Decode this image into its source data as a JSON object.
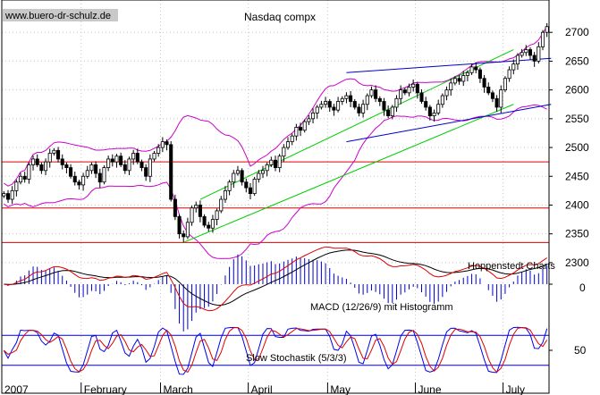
{
  "watermark": "www.buero-dr-schulz.de",
  "title": "Nasdaq compx",
  "credit": "Hoppenstedt Charts",
  "macd_label": "MACD (12/26/9) mit Histogramm",
  "stoch_label": "Slow Stochastik (5/3/3)",
  "colors": {
    "background": "#ffffff",
    "axis": "#000000",
    "grid": "#c8c8c8",
    "support": "#dd0000",
    "trend_green": "#00cc00",
    "trend_blue": "#0000cc",
    "bollinger": "#cc00cc",
    "macd_line": "#dd0000",
    "signal_line": "#000000",
    "histogram": "#0000cc",
    "stoch_k": "#0000ee",
    "stoch_d": "#dd0000"
  },
  "chart_data": [
    {
      "type": "candlestick",
      "title": "Nasdaq compx",
      "ylim": [
        2275,
        2750
      ],
      "yticks": [
        2300,
        2350,
        2400,
        2450,
        2500,
        2550,
        2600,
        2650,
        2700
      ],
      "x_labels": [
        "2007",
        "February",
        "March",
        "April",
        "May",
        "June",
        "July"
      ],
      "x_label_day_index": [
        0,
        19,
        38,
        59,
        78,
        99,
        120
      ],
      "num_days": 131,
      "grid": true,
      "close": [
        2420,
        2410,
        2425,
        2440,
        2450,
        2445,
        2470,
        2480,
        2470,
        2460,
        2475,
        2490,
        2495,
        2480,
        2470,
        2465,
        2450,
        2440,
        2435,
        2450,
        2460,
        2470,
        2455,
        2440,
        2465,
        2480,
        2475,
        2485,
        2470,
        2460,
        2480,
        2490,
        2475,
        2465,
        2450,
        2480,
        2490,
        2500,
        2510,
        2505,
        2410,
        2380,
        2350,
        2345,
        2370,
        2395,
        2400,
        2380,
        2365,
        2360,
        2375,
        2390,
        2410,
        2425,
        2440,
        2455,
        2460,
        2440,
        2430,
        2420,
        2445,
        2455,
        2460,
        2470,
        2478,
        2465,
        2485,
        2500,
        2510,
        2520,
        2535,
        2530,
        2545,
        2550,
        2560,
        2570,
        2575,
        2580,
        2570,
        2565,
        2580,
        2585,
        2590,
        2580,
        2570,
        2560,
        2575,
        2590,
        2600,
        2585,
        2580,
        2565,
        2555,
        2570,
        2585,
        2600,
        2595,
        2605,
        2610,
        2595,
        2580,
        2570,
        2555,
        2560,
        2575,
        2590,
        2600,
        2612,
        2620,
        2615,
        2625,
        2630,
        2640,
        2635,
        2620,
        2605,
        2595,
        2585,
        2570,
        2600,
        2620,
        2635,
        2645,
        2660,
        2665,
        2670,
        2660,
        2650,
        2675,
        2700,
        2710
      ],
      "support_lines": [
        2475,
        2395,
        2335
      ],
      "trend_channels": [
        {
          "color": "green",
          "points": [
            [
              47,
              2410
            ],
            [
              122,
              2670
            ]
          ]
        },
        {
          "color": "green",
          "points": [
            [
              43,
              2335
            ],
            [
              122,
              2575
            ]
          ]
        },
        {
          "color": "blue",
          "points": [
            [
              82,
              2630
            ],
            [
              131,
              2655
            ]
          ]
        },
        {
          "color": "blue",
          "points": [
            [
              82,
              2510
            ],
            [
              131,
              2575
            ]
          ]
        }
      ]
    },
    {
      "type": "line",
      "title": "MACD (12/26/9) mit Histogramm",
      "ytick_labels": [
        "0"
      ],
      "series": [
        {
          "role": "macd",
          "color": "red"
        },
        {
          "role": "signal",
          "color": "black"
        },
        {
          "role": "histogram",
          "color": "blue"
        }
      ]
    },
    {
      "type": "line",
      "title": "Slow Stochastik (5/3/3)",
      "ytick_labels": [
        "50"
      ],
      "series": [
        {
          "role": "%K",
          "color": "blue"
        },
        {
          "role": "%D",
          "color": "red"
        }
      ]
    }
  ]
}
